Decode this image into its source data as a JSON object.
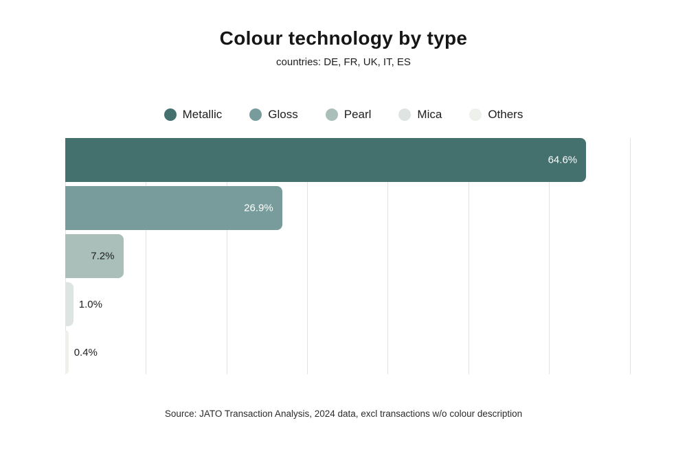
{
  "chart_data": {
    "type": "bar",
    "orientation": "horizontal",
    "title": "Colour technology by type",
    "subtitle": "countries: DE, FR, UK, IT, ES",
    "categories": [
      "Metallic",
      "Gloss",
      "Pearl",
      "Mica",
      "Others"
    ],
    "values": [
      64.6,
      26.9,
      7.2,
      1.0,
      0.4
    ],
    "value_labels": [
      "64.6%",
      "26.9%",
      "7.2%",
      "1.0%",
      "0.4%"
    ],
    "colors": [
      "#44706e",
      "#789c9b",
      "#aabfba",
      "#dde4e1",
      "#eef0ec"
    ],
    "label_inside": [
      true,
      true,
      true,
      false,
      false
    ],
    "label_colors": [
      "#ffffff",
      "#ffffff",
      "#1d1d1d",
      "#1d1d1d",
      "#1d1d1d"
    ],
    "xlim": [
      0,
      72
    ],
    "gridline_step": 10,
    "grid": true,
    "legend_position": "top",
    "source": "Source: JATO Transaction Analysis, 2024 data, excl transactions w/o colour description"
  }
}
